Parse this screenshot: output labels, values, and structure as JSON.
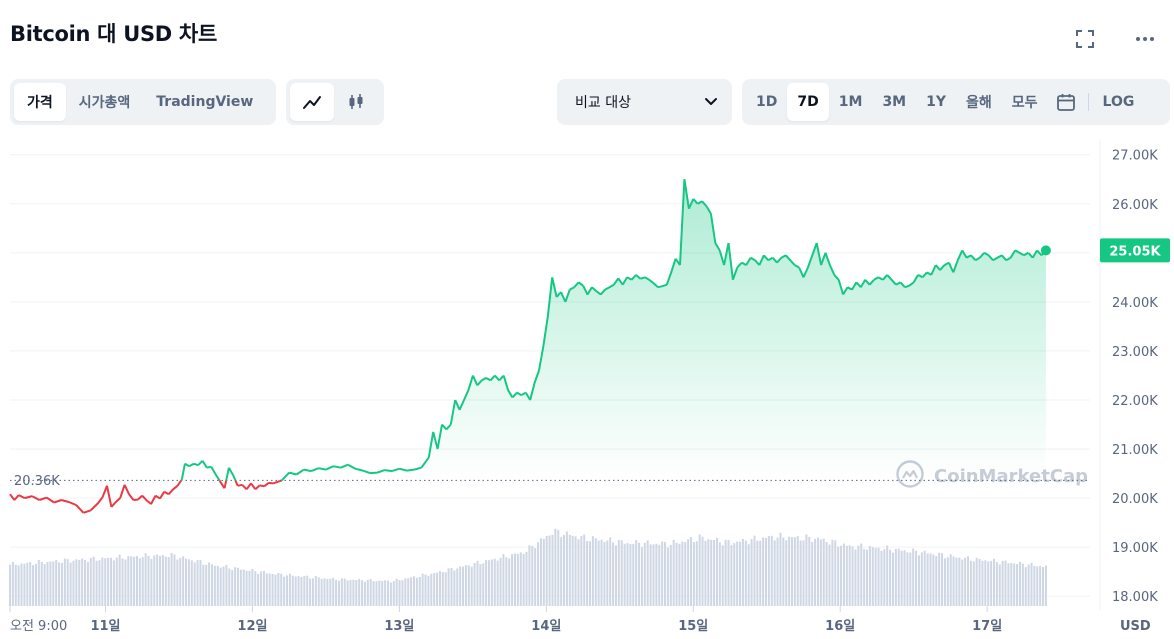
{
  "title": "Bitcoin 대 USD 차트",
  "toolbar": {
    "tabs": [
      "가격",
      "시가총액",
      "TradingView"
    ],
    "active_tab": "가격",
    "compare_label": "비교 대상",
    "ranges": [
      "1D",
      "7D",
      "1M",
      "3M",
      "1Y",
      "올해",
      "모두"
    ],
    "active_range": "7D",
    "log_label": "LOG"
  },
  "icons": {
    "fullscreen": "fullscreen-icon",
    "more": "more-icon",
    "line_chart": "line-chart-icon",
    "candlestick": "candlestick-icon",
    "calendar": "calendar-icon",
    "dropdown": "chevron-down-icon"
  },
  "colors": {
    "up": "#16c784",
    "down": "#ea3943",
    "axis_text": "#58667e",
    "volume": "#cfd6e4",
    "watermark": "#b8c1cf"
  },
  "chart_data": {
    "type": "line",
    "title": "Bitcoin 대 USD 차트",
    "xlabel": "",
    "ylabel": "",
    "ylim": [
      17800,
      27300
    ],
    "xlim": [
      0,
      7.35
    ],
    "x_ticks": [
      {
        "x": 0,
        "label": "오전 9:00"
      },
      {
        "x": 0.65,
        "label": "11일"
      },
      {
        "x": 1.65,
        "label": "12일"
      },
      {
        "x": 2.65,
        "label": "13일"
      },
      {
        "x": 3.65,
        "label": "14일"
      },
      {
        "x": 4.65,
        "label": "15일"
      },
      {
        "x": 5.65,
        "label": "16일"
      },
      {
        "x": 6.65,
        "label": "17일"
      }
    ],
    "x_unit_label": "USD",
    "y_ticks": [
      {
        "v": 18000,
        "label": "18.00K"
      },
      {
        "v": 19000,
        "label": "19.00K"
      },
      {
        "v": 20000,
        "label": "20.00K"
      },
      {
        "v": 21000,
        "label": "21.00K"
      },
      {
        "v": 22000,
        "label": "22.00K"
      },
      {
        "v": 23000,
        "label": "23.00K"
      },
      {
        "v": 24000,
        "label": "24.00K"
      },
      {
        "v": 25000,
        "label": "25.00K"
      },
      {
        "v": 26000,
        "label": "26.00K"
      },
      {
        "v": 27000,
        "label": "27.00K"
      }
    ],
    "baseline": {
      "value": 20360,
      "label": "20.36K"
    },
    "current": {
      "value": 25050,
      "label": "25.05K"
    },
    "grid": true,
    "watermark": "CoinMarketCap",
    "series": [
      {
        "values": [
          [
            0.0,
            20080
          ],
          [
            0.03,
            19960
          ],
          [
            0.06,
            20060
          ],
          [
            0.1,
            20000
          ],
          [
            0.15,
            20040
          ],
          [
            0.2,
            19960
          ],
          [
            0.25,
            20010
          ],
          [
            0.3,
            19910
          ],
          [
            0.35,
            19960
          ],
          [
            0.4,
            19920
          ],
          [
            0.45,
            19860
          ],
          [
            0.5,
            19700
          ],
          [
            0.55,
            19750
          ],
          [
            0.6,
            19900
          ],
          [
            0.63,
            20020
          ],
          [
            0.66,
            20250
          ],
          [
            0.69,
            19820
          ],
          [
            0.72,
            19920
          ],
          [
            0.75,
            20000
          ],
          [
            0.78,
            20270
          ],
          [
            0.81,
            20080
          ],
          [
            0.84,
            19960
          ],
          [
            0.87,
            19970
          ],
          [
            0.9,
            20050
          ],
          [
            0.93,
            19950
          ],
          [
            0.96,
            19880
          ],
          [
            0.99,
            20050
          ],
          [
            1.02,
            19990
          ],
          [
            1.05,
            20130
          ],
          [
            1.08,
            20080
          ],
          [
            1.11,
            20180
          ],
          [
            1.14,
            20250
          ],
          [
            1.17,
            20380
          ],
          [
            1.19,
            20700
          ],
          [
            1.22,
            20650
          ],
          [
            1.25,
            20700
          ],
          [
            1.28,
            20670
          ],
          [
            1.31,
            20760
          ],
          [
            1.34,
            20620
          ],
          [
            1.37,
            20640
          ],
          [
            1.4,
            20480
          ],
          [
            1.43,
            20340
          ],
          [
            1.46,
            20200
          ],
          [
            1.49,
            20620
          ],
          [
            1.52,
            20460
          ],
          [
            1.55,
            20250
          ],
          [
            1.58,
            20270
          ],
          [
            1.61,
            20180
          ],
          [
            1.64,
            20300
          ],
          [
            1.67,
            20180
          ],
          [
            1.7,
            20260
          ],
          [
            1.73,
            20240
          ],
          [
            1.76,
            20310
          ],
          [
            1.79,
            20300
          ],
          [
            1.82,
            20330
          ],
          [
            1.85,
            20360
          ],
          [
            1.9,
            20520
          ],
          [
            1.95,
            20480
          ],
          [
            2.0,
            20580
          ],
          [
            2.05,
            20550
          ],
          [
            2.1,
            20610
          ],
          [
            2.15,
            20580
          ],
          [
            2.2,
            20650
          ],
          [
            2.25,
            20620
          ],
          [
            2.3,
            20680
          ],
          [
            2.35,
            20600
          ],
          [
            2.4,
            20560
          ],
          [
            2.45,
            20510
          ],
          [
            2.5,
            20520
          ],
          [
            2.55,
            20570
          ],
          [
            2.6,
            20550
          ],
          [
            2.65,
            20600
          ],
          [
            2.7,
            20560
          ],
          [
            2.75,
            20580
          ],
          [
            2.8,
            20620
          ],
          [
            2.85,
            20830
          ],
          [
            2.88,
            21350
          ],
          [
            2.91,
            21000
          ],
          [
            2.94,
            21500
          ],
          [
            2.97,
            21400
          ],
          [
            3.0,
            21500
          ],
          [
            3.03,
            22000
          ],
          [
            3.06,
            21800
          ],
          [
            3.09,
            22000
          ],
          [
            3.12,
            22200
          ],
          [
            3.15,
            22500
          ],
          [
            3.18,
            22300
          ],
          [
            3.21,
            22400
          ],
          [
            3.24,
            22450
          ],
          [
            3.27,
            22400
          ],
          [
            3.3,
            22500
          ],
          [
            3.33,
            22400
          ],
          [
            3.36,
            22500
          ],
          [
            3.39,
            22200
          ],
          [
            3.42,
            22050
          ],
          [
            3.45,
            22150
          ],
          [
            3.48,
            22100
          ],
          [
            3.51,
            22150
          ],
          [
            3.54,
            22000
          ],
          [
            3.57,
            22350
          ],
          [
            3.6,
            22600
          ],
          [
            3.63,
            23100
          ],
          [
            3.66,
            23700
          ],
          [
            3.69,
            24500
          ],
          [
            3.72,
            24100
          ],
          [
            3.75,
            24200
          ],
          [
            3.78,
            24000
          ],
          [
            3.81,
            24250
          ],
          [
            3.84,
            24300
          ],
          [
            3.87,
            24400
          ],
          [
            3.9,
            24330
          ],
          [
            3.93,
            24150
          ],
          [
            3.96,
            24300
          ],
          [
            3.99,
            24220
          ],
          [
            4.02,
            24150
          ],
          [
            4.05,
            24250
          ],
          [
            4.08,
            24300
          ],
          [
            4.11,
            24350
          ],
          [
            4.14,
            24480
          ],
          [
            4.17,
            24350
          ],
          [
            4.2,
            24500
          ],
          [
            4.23,
            24450
          ],
          [
            4.26,
            24550
          ],
          [
            4.29,
            24470
          ],
          [
            4.32,
            24500
          ],
          [
            4.35,
            24450
          ],
          [
            4.38,
            24380
          ],
          [
            4.41,
            24300
          ],
          [
            4.44,
            24320
          ],
          [
            4.47,
            24350
          ],
          [
            4.5,
            24600
          ],
          [
            4.53,
            24880
          ],
          [
            4.56,
            24750
          ],
          [
            4.59,
            26500
          ],
          [
            4.62,
            25900
          ],
          [
            4.65,
            26100
          ],
          [
            4.68,
            26000
          ],
          [
            4.71,
            26050
          ],
          [
            4.74,
            25950
          ],
          [
            4.77,
            25800
          ],
          [
            4.8,
            25200
          ],
          [
            4.83,
            25050
          ],
          [
            4.86,
            24750
          ],
          [
            4.89,
            25200
          ],
          [
            4.92,
            24450
          ],
          [
            4.95,
            24700
          ],
          [
            4.98,
            24800
          ],
          [
            5.01,
            24750
          ],
          [
            5.04,
            24900
          ],
          [
            5.07,
            24850
          ],
          [
            5.1,
            24750
          ],
          [
            5.13,
            24950
          ],
          [
            5.16,
            24850
          ],
          [
            5.19,
            24900
          ],
          [
            5.22,
            24800
          ],
          [
            5.25,
            24900
          ],
          [
            5.28,
            24950
          ],
          [
            5.31,
            24850
          ],
          [
            5.34,
            24750
          ],
          [
            5.37,
            24700
          ],
          [
            5.4,
            24500
          ],
          [
            5.43,
            24700
          ],
          [
            5.46,
            24950
          ],
          [
            5.49,
            25200
          ],
          [
            5.52,
            24750
          ],
          [
            5.55,
            25000
          ],
          [
            5.58,
            24750
          ],
          [
            5.61,
            24550
          ],
          [
            5.64,
            24450
          ],
          [
            5.67,
            24150
          ],
          [
            5.7,
            24300
          ],
          [
            5.73,
            24250
          ],
          [
            5.76,
            24400
          ],
          [
            5.79,
            24300
          ],
          [
            5.82,
            24450
          ],
          [
            5.85,
            24350
          ],
          [
            5.88,
            24450
          ],
          [
            5.91,
            24500
          ],
          [
            5.94,
            24450
          ],
          [
            5.97,
            24550
          ],
          [
            6.0,
            24450
          ],
          [
            6.03,
            24350
          ],
          [
            6.06,
            24400
          ],
          [
            6.09,
            24300
          ],
          [
            6.12,
            24330
          ],
          [
            6.15,
            24400
          ],
          [
            6.18,
            24550
          ],
          [
            6.21,
            24500
          ],
          [
            6.24,
            24600
          ],
          [
            6.27,
            24550
          ],
          [
            6.3,
            24750
          ],
          [
            6.33,
            24650
          ],
          [
            6.36,
            24750
          ],
          [
            6.39,
            24800
          ],
          [
            6.42,
            24600
          ],
          [
            6.45,
            24850
          ],
          [
            6.48,
            25050
          ],
          [
            6.51,
            24900
          ],
          [
            6.54,
            24950
          ],
          [
            6.57,
            24850
          ],
          [
            6.6,
            24900
          ],
          [
            6.63,
            25000
          ],
          [
            6.66,
            24950
          ],
          [
            6.69,
            24850
          ],
          [
            6.72,
            24900
          ],
          [
            6.75,
            24950
          ],
          [
            6.78,
            24850
          ],
          [
            6.81,
            24900
          ],
          [
            6.84,
            25050
          ],
          [
            6.87,
            25000
          ],
          [
            6.9,
            24950
          ],
          [
            6.93,
            25000
          ],
          [
            6.96,
            24900
          ],
          [
            6.99,
            25050
          ],
          [
            7.02,
            24950
          ],
          [
            7.05,
            25050
          ]
        ]
      }
    ],
    "volume": [
      [
        0.0,
        0.4
      ],
      [
        0.4,
        0.44
      ],
      [
        0.9,
        0.48
      ],
      [
        1.1,
        0.49
      ],
      [
        1.4,
        0.39
      ],
      [
        1.8,
        0.31
      ],
      [
        2.2,
        0.26
      ],
      [
        2.6,
        0.24
      ],
      [
        2.9,
        0.32
      ],
      [
        3.2,
        0.42
      ],
      [
        3.5,
        0.52
      ],
      [
        3.7,
        0.72
      ],
      [
        3.9,
        0.66
      ],
      [
        4.2,
        0.61
      ],
      [
        4.5,
        0.6
      ],
      [
        4.7,
        0.66
      ],
      [
        4.9,
        0.61
      ],
      [
        5.2,
        0.67
      ],
      [
        5.5,
        0.65
      ],
      [
        5.7,
        0.58
      ],
      [
        5.9,
        0.56
      ],
      [
        6.2,
        0.52
      ],
      [
        6.5,
        0.46
      ],
      [
        6.8,
        0.42
      ],
      [
        7.05,
        0.38
      ]
    ]
  }
}
